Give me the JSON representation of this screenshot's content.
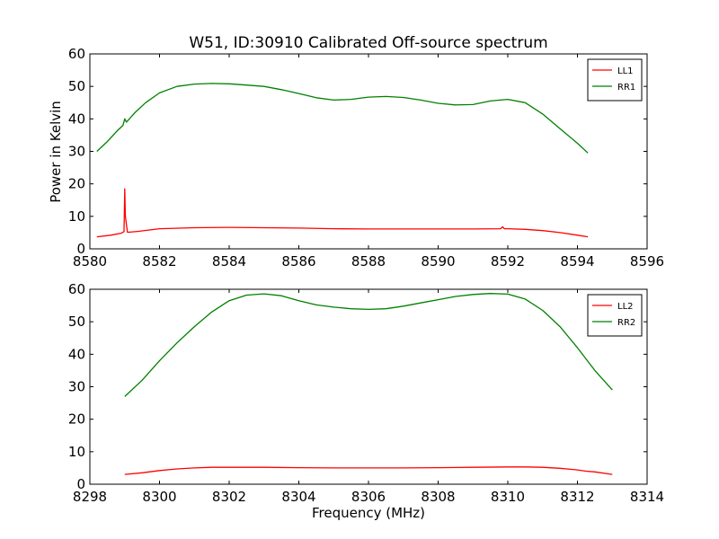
{
  "figure": {
    "title": "W51, ID:30910 Calibrated Off-source spectrum"
  },
  "chart_data": [
    {
      "type": "line",
      "title": "W51, ID:30910 Calibrated Off-source spectrum",
      "xlabel": "",
      "ylabel": "Power in Kelvin",
      "xlim": [
        8580,
        8596
      ],
      "ylim": [
        0,
        60
      ],
      "xticks": [
        8580,
        8582,
        8584,
        8586,
        8588,
        8590,
        8592,
        8594,
        8596
      ],
      "yticks": [
        0,
        10,
        20,
        30,
        40,
        50,
        60
      ],
      "grid": false,
      "legend_position": "top-right",
      "series": [
        {
          "name": "LL1",
          "color": "#ff0000",
          "x": [
            8580.2,
            8580.6,
            8580.9,
            8580.98,
            8581.0,
            8581.02,
            8581.08,
            8581.4,
            8582.0,
            8583.0,
            8584.0,
            8585.0,
            8586.0,
            8587.0,
            8588.0,
            8589.0,
            8590.0,
            8591.0,
            8591.8,
            8591.85,
            8591.9,
            8592.0,
            8592.5,
            8593.0,
            8593.5,
            8594.0,
            8594.3
          ],
          "y": [
            3.7,
            4.2,
            4.8,
            5.3,
            18.5,
            10.0,
            5.1,
            5.4,
            6.2,
            6.5,
            6.6,
            6.5,
            6.4,
            6.2,
            6.1,
            6.1,
            6.1,
            6.1,
            6.2,
            6.8,
            6.2,
            6.2,
            6.0,
            5.6,
            5.0,
            4.2,
            3.7
          ]
        },
        {
          "name": "RR1",
          "color": "#008000",
          "x": [
            8580.2,
            8580.5,
            8580.8,
            8580.95,
            8581.0,
            8581.05,
            8581.3,
            8581.6,
            8582.0,
            8582.5,
            8583.0,
            8583.5,
            8584.0,
            8584.5,
            8585.0,
            8585.5,
            8586.0,
            8586.5,
            8587.0,
            8587.5,
            8588.0,
            8588.5,
            8589.0,
            8589.5,
            8590.0,
            8590.5,
            8591.0,
            8591.5,
            8592.0,
            8592.5,
            8593.0,
            8593.5,
            8594.0,
            8594.3
          ],
          "y": [
            30.0,
            33.0,
            36.5,
            38.0,
            40.0,
            39.0,
            42.0,
            45.0,
            48.0,
            50.0,
            50.7,
            50.9,
            50.8,
            50.4,
            50.0,
            49.0,
            47.8,
            46.5,
            45.8,
            46.0,
            46.7,
            46.9,
            46.6,
            45.8,
            44.8,
            44.3,
            44.4,
            45.5,
            46.0,
            45.0,
            41.5,
            37.0,
            32.5,
            29.5
          ]
        }
      ]
    },
    {
      "type": "line",
      "title": "",
      "xlabel": "Frequency (MHz)",
      "ylabel": "",
      "xlim": [
        8298,
        8314
      ],
      "ylim": [
        0,
        60
      ],
      "xticks": [
        8298,
        8300,
        8302,
        8304,
        8306,
        8308,
        8310,
        8312,
        8314
      ],
      "yticks": [
        0,
        10,
        20,
        30,
        40,
        50,
        60
      ],
      "grid": false,
      "legend_position": "top-right",
      "series": [
        {
          "name": "LL2",
          "color": "#ff0000",
          "x": [
            8299.0,
            8299.5,
            8300.0,
            8300.5,
            8301.0,
            8301.5,
            8302.0,
            8303.0,
            8304.0,
            8305.0,
            8306.0,
            8307.0,
            8308.0,
            8309.0,
            8310.0,
            8310.5,
            8311.0,
            8311.5,
            8312.0,
            8312.25,
            8312.5,
            8313.0
          ],
          "y": [
            3.0,
            3.5,
            4.2,
            4.7,
            5.0,
            5.2,
            5.2,
            5.2,
            5.1,
            5.0,
            5.0,
            5.0,
            5.1,
            5.2,
            5.3,
            5.3,
            5.2,
            4.9,
            4.4,
            4.0,
            3.8,
            3.0
          ]
        },
        {
          "name": "RR2",
          "color": "#008000",
          "x": [
            8299.0,
            8299.5,
            8300.0,
            8300.5,
            8301.0,
            8301.5,
            8302.0,
            8302.5,
            8303.0,
            8303.5,
            8304.0,
            8304.5,
            8305.0,
            8305.5,
            8306.0,
            8306.5,
            8307.0,
            8307.5,
            8308.0,
            8308.5,
            8309.0,
            8309.5,
            8310.0,
            8310.5,
            8311.0,
            8311.5,
            8312.0,
            8312.5,
            8313.0
          ],
          "y": [
            27.0,
            32.0,
            38.0,
            43.5,
            48.5,
            53.0,
            56.5,
            58.2,
            58.6,
            58.0,
            56.5,
            55.2,
            54.5,
            54.0,
            53.8,
            54.0,
            54.8,
            55.8,
            56.8,
            57.8,
            58.4,
            58.7,
            58.5,
            57.0,
            53.5,
            48.5,
            42.0,
            35.0,
            29.0
          ]
        }
      ]
    }
  ]
}
